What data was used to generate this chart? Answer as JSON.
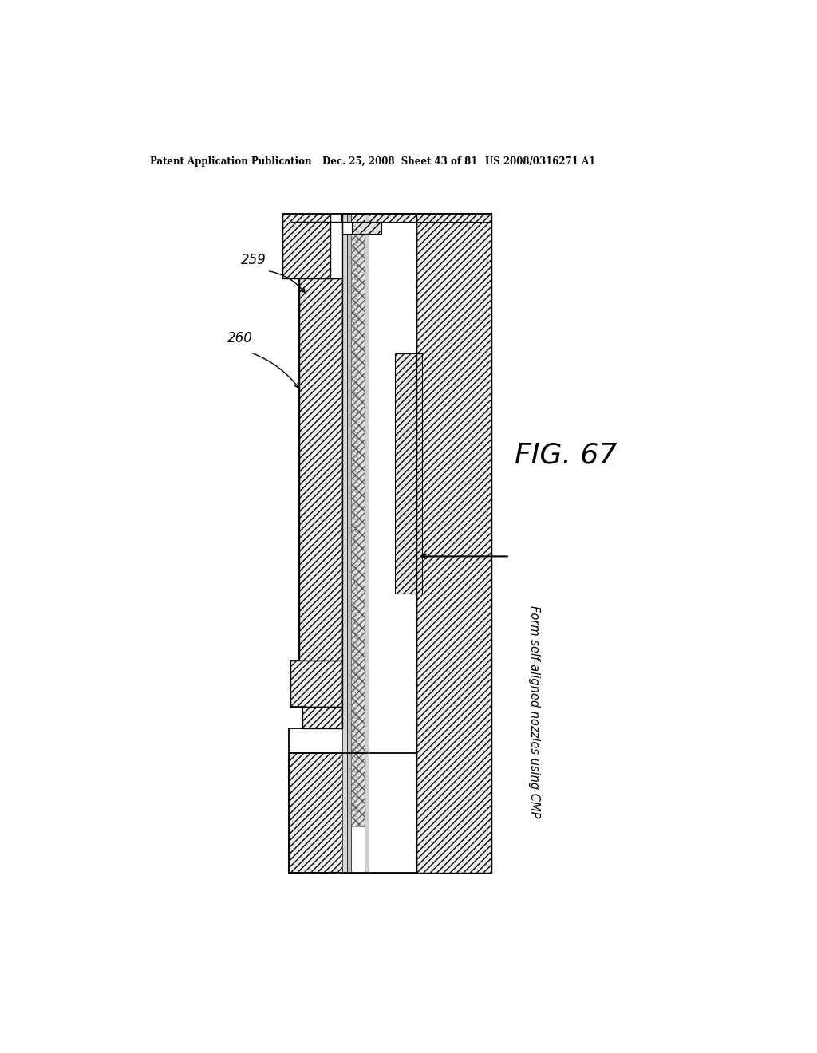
{
  "title_left": "Patent Application Publication",
  "title_mid": "Dec. 25, 2008  Sheet 43 of 81",
  "title_right": "US 2008/0316271 A1",
  "fig_label": "FIG. 67",
  "annotation_text": "Form self-aligned nozzles using CMP",
  "label_259": "259",
  "label_260": "260",
  "bg_color": "#ffffff"
}
